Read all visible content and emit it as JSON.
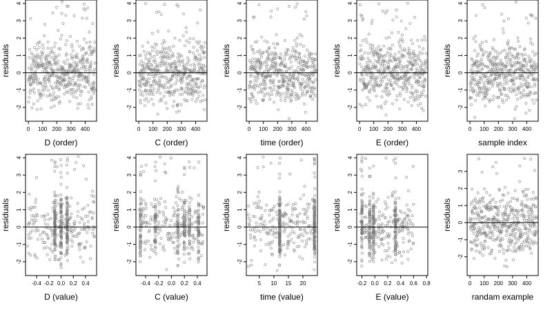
{
  "chart_data": [
    {
      "type": "scatter",
      "xlabel": "D (order)",
      "ylabel": "residuals",
      "xlim": [
        -20,
        480
      ],
      "ylim": [
        -2.8,
        4.2
      ],
      "xticks": [
        "0",
        "100",
        "200",
        "300",
        "400"
      ],
      "xtickvals": [
        0,
        100,
        200,
        300,
        400
      ],
      "yticks": [
        "-2",
        "-1",
        "0",
        "1",
        "2",
        "3",
        "4"
      ],
      "ytickvals": [
        -2,
        -1,
        0,
        1,
        2,
        3,
        4
      ],
      "hline": 0,
      "n": 470,
      "xrange": [
        1,
        470
      ],
      "seed": 11
    },
    {
      "type": "scatter",
      "xlabel": "C (order)",
      "ylabel": "residuals",
      "xlim": [
        -20,
        480
      ],
      "ylim": [
        -2.8,
        4.2
      ],
      "xticks": [
        "0",
        "100",
        "200",
        "300",
        "400"
      ],
      "xtickvals": [
        0,
        100,
        200,
        300,
        400
      ],
      "yticks": [
        "-2",
        "-1",
        "0",
        "1",
        "2",
        "3",
        "4"
      ],
      "ytickvals": [
        -2,
        -1,
        0,
        1,
        2,
        3,
        4
      ],
      "hline": 0,
      "n": 470,
      "xrange": [
        1,
        470
      ],
      "seed": 23
    },
    {
      "type": "scatter",
      "xlabel": "time (order)",
      "ylabel": "residuals",
      "xlim": [
        -20,
        480
      ],
      "ylim": [
        -2.8,
        4.2
      ],
      "xticks": [
        "0",
        "100",
        "200",
        "300",
        "400"
      ],
      "xtickvals": [
        0,
        100,
        200,
        300,
        400
      ],
      "yticks": [
        "-2",
        "-1",
        "0",
        "1",
        "2",
        "3",
        "4"
      ],
      "ytickvals": [
        -2,
        -1,
        0,
        1,
        2,
        3,
        4
      ],
      "hline": 0,
      "n": 470,
      "xrange": [
        1,
        470
      ],
      "seed": 37
    },
    {
      "type": "scatter",
      "xlabel": "E (order)",
      "ylabel": "residuals",
      "xlim": [
        -20,
        480
      ],
      "ylim": [
        -2.8,
        4.2
      ],
      "xticks": [
        "0",
        "100",
        "200",
        "300",
        "400"
      ],
      "xtickvals": [
        0,
        100,
        200,
        300,
        400
      ],
      "yticks": [
        "-2",
        "-1",
        "0",
        "1",
        "2",
        "3",
        "4"
      ],
      "ytickvals": [
        -2,
        -1,
        0,
        1,
        2,
        3,
        4
      ],
      "hline": 0,
      "n": 470,
      "xrange": [
        1,
        470
      ],
      "seed": 41
    },
    {
      "type": "scatter",
      "xlabel": "sample index",
      "ylabel": "residuals",
      "xlim": [
        -20,
        480
      ],
      "ylim": [
        -2.8,
        4.2
      ],
      "xticks": [
        "0",
        "100",
        "200",
        "300",
        "400"
      ],
      "xtickvals": [
        0,
        100,
        200,
        300,
        400
      ],
      "yticks": [
        "-2",
        "-1",
        "0",
        "1",
        "2",
        "3",
        "4"
      ],
      "ytickvals": [
        -2,
        -1,
        0,
        1,
        2,
        3,
        4
      ],
      "hline": 0,
      "n": 470,
      "xrange": [
        1,
        470
      ],
      "seed": 53
    },
    {
      "type": "scatter",
      "xlabel": "D (value)",
      "ylabel": "residuals",
      "xlim": [
        -0.58,
        0.58
      ],
      "ylim": [
        -2.8,
        4.2
      ],
      "xticks": [
        "-0.4",
        "-0.2",
        "0.0",
        "0.2",
        "0.4"
      ],
      "xtickvals": [
        -0.4,
        -0.2,
        0,
        0.2,
        0.4
      ],
      "yticks": [
        "-2",
        "-1",
        "0",
        "1",
        "2",
        "3",
        "4"
      ],
      "ytickvals": [
        -2,
        -1,
        0,
        1,
        2,
        3,
        4
      ],
      "hline": 0,
      "n": 470,
      "xrange": [
        -0.55,
        0.55
      ],
      "seed": 67,
      "clusters": [
        -0.1,
        0.0,
        0.1
      ]
    },
    {
      "type": "scatter",
      "xlabel": "C (value)",
      "ylabel": "residuals",
      "xlim": [
        -0.55,
        0.55
      ],
      "ylim": [
        -2.8,
        4.2
      ],
      "xticks": [
        "-0.4",
        "-0.2",
        "0.0",
        "0.2",
        "0.4"
      ],
      "xtickvals": [
        -0.4,
        -0.2,
        0,
        0.2,
        0.4
      ],
      "yticks": [
        "-2",
        "-1",
        "0",
        "1",
        "2",
        "3",
        "4"
      ],
      "ytickvals": [
        -2,
        -1,
        0,
        1,
        2,
        3,
        4
      ],
      "hline": 0,
      "n": 470,
      "xrange": [
        -0.5,
        0.5
      ],
      "seed": 71,
      "clusters": [
        -0.48,
        -0.25,
        0.1,
        0.2,
        0.28,
        0.42
      ]
    },
    {
      "type": "scatter",
      "xlabel": "time (value)",
      "ylabel": "residuals",
      "xlim": [
        0.5,
        25
      ],
      "ylim": [
        -2.8,
        4.2
      ],
      "xticks": [
        "5",
        "10",
        "15",
        "20"
      ],
      "xtickvals": [
        5,
        10,
        15,
        20
      ],
      "yticks": [
        "-2",
        "-1",
        "0",
        "1",
        "2",
        "3",
        "4"
      ],
      "ytickvals": [
        -2,
        -1,
        0,
        1,
        2,
        3,
        4
      ],
      "hline": 0,
      "n": 470,
      "xrange": [
        1,
        24
      ],
      "seed": 83,
      "clusters": [
        12,
        24
      ]
    },
    {
      "type": "scatter",
      "xlabel": "E (value)",
      "ylabel": "residuals",
      "xlim": [
        -0.28,
        0.82
      ],
      "ylim": [
        -2.8,
        4.2
      ],
      "xticks": [
        "-0.2",
        "0.0",
        "0.2",
        "0.4",
        "0.6",
        "0.8"
      ],
      "xtickvals": [
        -0.2,
        0,
        0.2,
        0.4,
        0.6,
        0.8
      ],
      "yticks": [
        "-2",
        "-1",
        "0",
        "1",
        "2",
        "3",
        "4"
      ],
      "ytickvals": [
        -2,
        -1,
        0,
        1,
        2,
        3,
        4
      ],
      "hline": 0,
      "n": 470,
      "xrange": [
        -0.22,
        0.6
      ],
      "seed": 97,
      "clusters": [
        -0.2,
        -0.08,
        -0.02,
        0.32
      ]
    },
    {
      "type": "scatter",
      "xlabel": "randam example",
      "ylabel": "residuals",
      "xlim": [
        -20,
        480
      ],
      "ylim": [
        -3.1,
        4.0
      ],
      "xticks": [
        "0",
        "100",
        "200",
        "300",
        "400"
      ],
      "xtickvals": [
        0,
        100,
        200,
        300,
        400
      ],
      "yticks": [
        "-2",
        "-1",
        "0",
        "1",
        "2",
        "3"
      ],
      "ytickvals": [
        -2,
        -1,
        0,
        1,
        2,
        3
      ],
      "hline": 0,
      "n": 470,
      "xrange": [
        1,
        470
      ],
      "seed": 101
    }
  ]
}
